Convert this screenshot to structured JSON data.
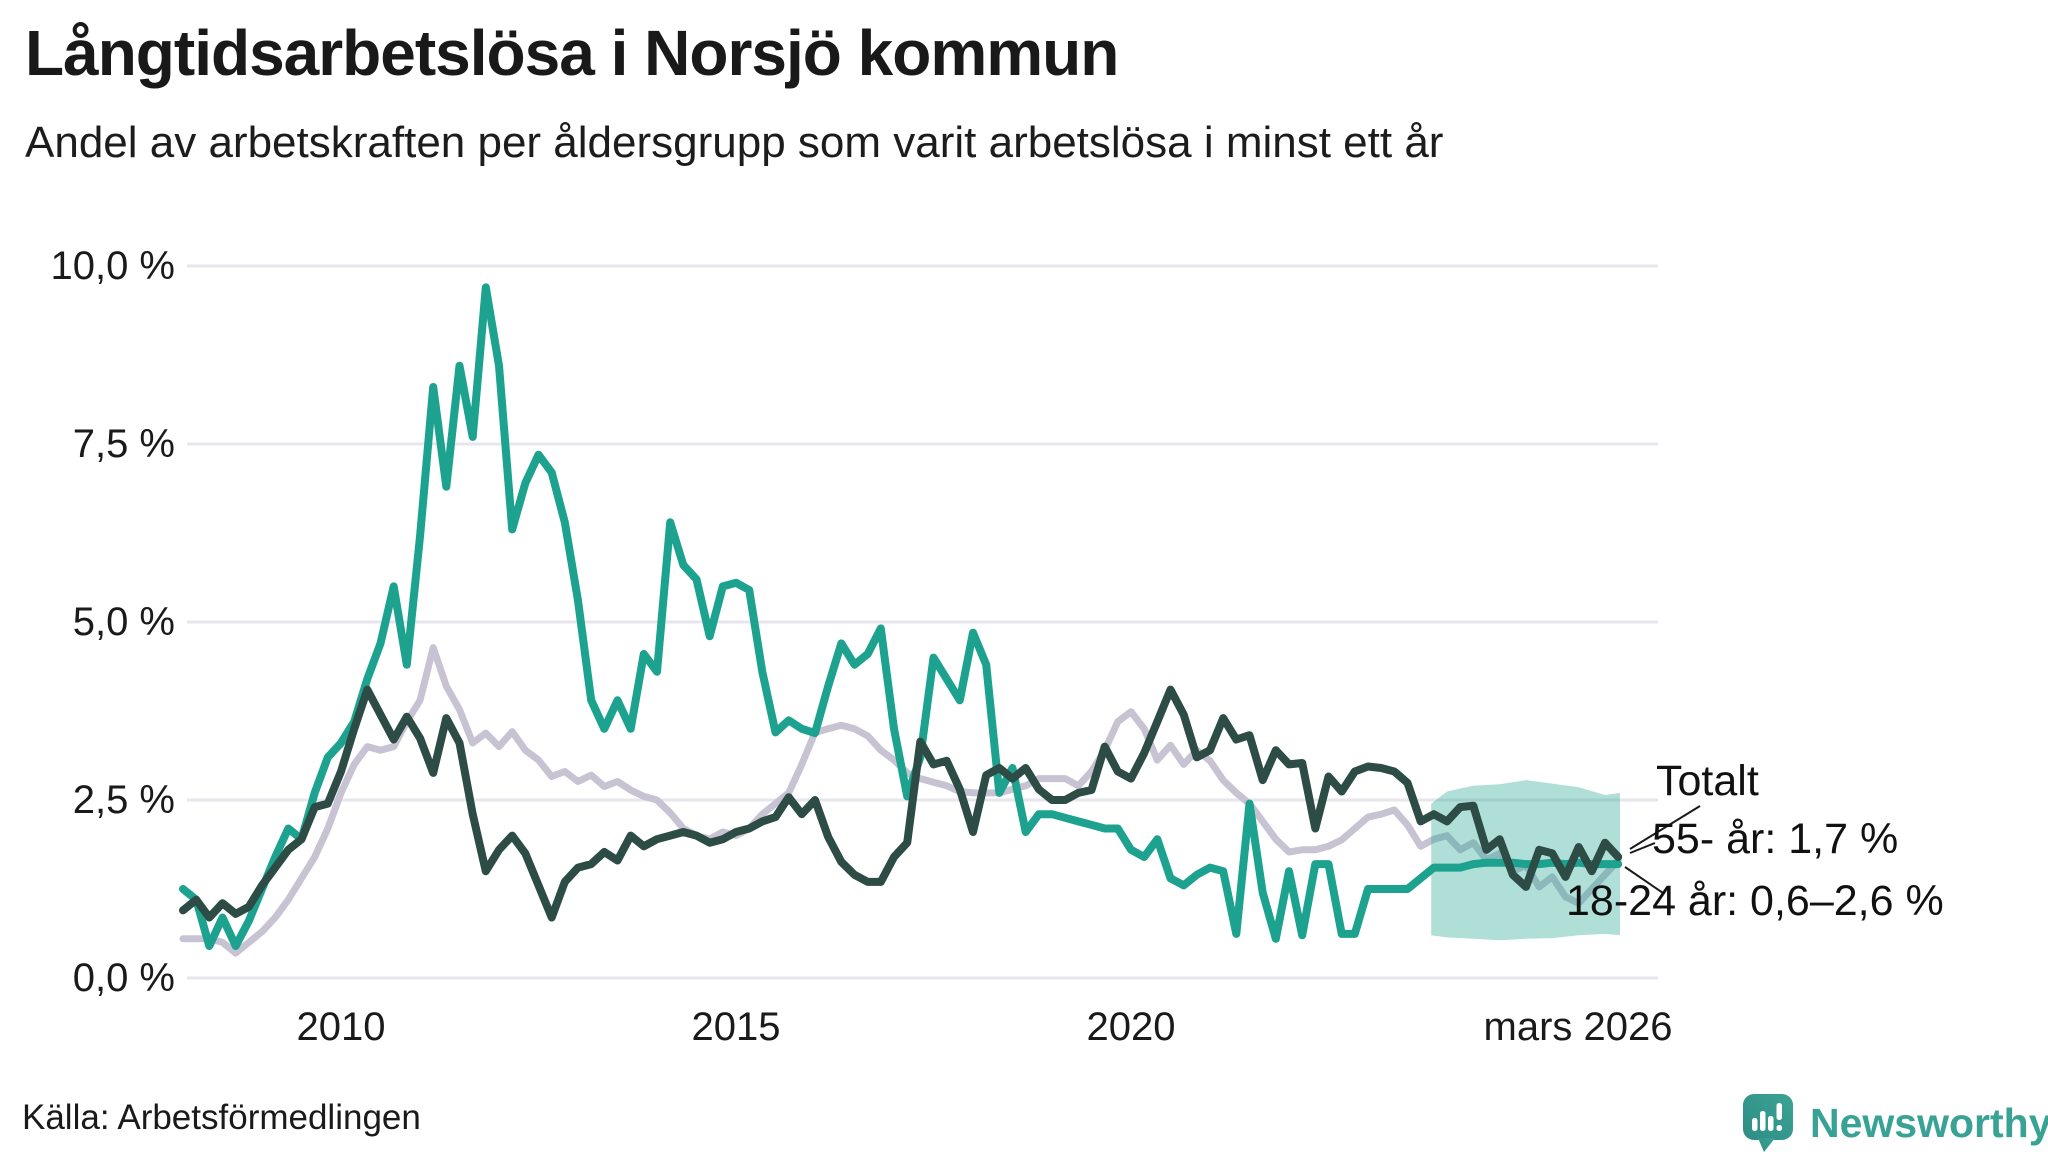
{
  "source": {
    "label": "Källa: Arbetsförmedlingen"
  },
  "branding": {
    "name": "Newsworthy",
    "color": "#38a294"
  },
  "annotations": {
    "totalt": "Totalt",
    "age55": "55- år: 1,7 %",
    "age1824": "18-24 år: 0,6–2,6 %"
  },
  "chart_data": {
    "type": "line",
    "title": "Långtidsarbetslösa i Norsjö kommun",
    "subtitle": "Andel av arbetskraften per åldersgrupp som varit arbetslösa i minst ett år",
    "unit": "%",
    "grid": "horizontal",
    "legend_position": "annotations-right",
    "y_axis": {
      "range": [
        0,
        10
      ],
      "values": [
        10,
        7.5,
        5,
        2.5,
        0
      ],
      "tick_labels": [
        "10,0 %",
        "7,5 %",
        "5,0 %",
        "2,5 %",
        "0,0 %"
      ]
    },
    "x_axis": {
      "range_years": [
        2008.0,
        2026.25
      ],
      "ticks": [
        {
          "label": "2010",
          "t": 2010
        },
        {
          "label": "2015",
          "t": 2015
        },
        {
          "label": "2020",
          "t": 2020
        },
        {
          "label": "mars 2026",
          "t": 2026.19
        }
      ]
    },
    "x_start": 2008.0,
    "x_step": 0.1666667,
    "series": [
      {
        "name": "Totalt",
        "color": "#c7c3d3",
        "width": 7,
        "end_value": 1.65,
        "values": [
          0.55,
          0.55,
          0.55,
          0.5,
          0.35,
          0.5,
          0.65,
          0.85,
          1.1,
          1.4,
          1.7,
          2.1,
          2.6,
          3.0,
          3.25,
          3.2,
          3.25,
          3.6,
          3.9,
          4.64,
          4.1,
          3.77,
          3.3,
          3.44,
          3.25,
          3.46,
          3.2,
          3.06,
          2.83,
          2.9,
          2.76,
          2.85,
          2.69,
          2.76,
          2.64,
          2.55,
          2.5,
          2.32,
          2.1,
          2.0,
          1.95,
          2.05,
          2.0,
          2.1,
          2.3,
          2.45,
          2.6,
          3.0,
          3.45,
          3.5,
          3.55,
          3.5,
          3.4,
          3.2,
          3.06,
          2.88,
          2.8,
          2.75,
          2.7,
          2.62,
          2.6,
          2.6,
          2.6,
          2.65,
          2.7,
          2.8,
          2.8,
          2.8,
          2.7,
          2.9,
          3.2,
          3.6,
          3.74,
          3.5,
          3.06,
          3.27,
          3.0,
          3.2,
          3.05,
          2.78,
          2.6,
          2.45,
          2.2,
          1.95,
          1.77,
          1.8,
          1.8,
          1.85,
          1.94,
          2.1,
          2.26,
          2.3,
          2.36,
          2.15,
          1.85,
          1.95,
          2.0,
          1.8,
          1.9,
          1.66,
          1.75,
          1.5,
          1.58,
          1.28,
          1.42,
          1.14,
          1.05,
          1.25,
          1.45,
          1.65
        ]
      },
      {
        "name": "18-24 år",
        "color": "#1ca28f",
        "width": 8,
        "end_value": 1.6,
        "end_range": [
          0.6,
          2.6
        ],
        "values": [
          1.25,
          1.1,
          0.45,
          0.85,
          0.45,
          0.8,
          1.25,
          1.7,
          2.1,
          1.95,
          2.6,
          3.1,
          3.3,
          3.6,
          4.2,
          4.7,
          5.5,
          4.4,
          6.2,
          8.3,
          6.9,
          8.6,
          7.6,
          9.7,
          8.6,
          6.3,
          6.95,
          7.35,
          7.1,
          6.4,
          5.3,
          3.9,
          3.5,
          3.9,
          3.5,
          4.55,
          4.3,
          6.4,
          5.8,
          5.6,
          4.8,
          5.5,
          5.55,
          5.45,
          4.3,
          3.45,
          3.62,
          3.5,
          3.44,
          4.1,
          4.7,
          4.4,
          4.55,
          4.91,
          3.5,
          2.55,
          3.1,
          4.5,
          4.2,
          3.9,
          4.85,
          4.4,
          2.6,
          2.95,
          2.05,
          2.3,
          2.3,
          2.25,
          2.2,
          2.15,
          2.1,
          2.1,
          1.8,
          1.7,
          1.95,
          1.4,
          1.3,
          1.45,
          1.55,
          1.5,
          0.62,
          2.45,
          1.2,
          0.55,
          1.5,
          0.6,
          1.6,
          1.6,
          0.62,
          0.62,
          1.25,
          1.25,
          1.25,
          1.25,
          1.4,
          1.55,
          1.55,
          1.55,
          1.6,
          1.62,
          1.62,
          1.62,
          1.6,
          1.6,
          1.62,
          1.6,
          1.62,
          1.6,
          1.6,
          1.6
        ]
      },
      {
        "name": "55- år",
        "color": "#2d4c45",
        "width": 8,
        "end_value": 1.7,
        "values": [
          0.95,
          1.1,
          0.85,
          1.05,
          0.9,
          1.0,
          1.3,
          1.55,
          1.8,
          1.95,
          2.4,
          2.45,
          2.9,
          3.5,
          4.05,
          3.7,
          3.35,
          3.67,
          3.37,
          2.88,
          3.65,
          3.3,
          2.3,
          1.5,
          1.8,
          2.0,
          1.75,
          1.3,
          0.85,
          1.35,
          1.55,
          1.6,
          1.77,
          1.65,
          2.0,
          1.85,
          1.95,
          2.0,
          2.05,
          2.0,
          1.9,
          1.95,
          2.05,
          2.1,
          2.2,
          2.26,
          2.54,
          2.3,
          2.5,
          1.98,
          1.63,
          1.45,
          1.35,
          1.35,
          1.7,
          1.9,
          3.32,
          3.0,
          3.05,
          2.65,
          2.05,
          2.85,
          2.95,
          2.8,
          2.95,
          2.65,
          2.5,
          2.5,
          2.6,
          2.64,
          3.25,
          2.9,
          2.8,
          3.16,
          3.6,
          4.05,
          3.7,
          3.1,
          3.2,
          3.65,
          3.35,
          3.41,
          2.78,
          3.2,
          3.0,
          3.02,
          2.1,
          2.83,
          2.62,
          2.9,
          2.97,
          2.95,
          2.9,
          2.74,
          2.2,
          2.3,
          2.2,
          2.4,
          2.42,
          1.8,
          1.95,
          1.45,
          1.28,
          1.8,
          1.75,
          1.42,
          1.84,
          1.5,
          1.9,
          1.7
        ]
      }
    ],
    "band": {
      "series": "18-24 år",
      "label": "0,6–2,6 %",
      "color": "rgba(28,162,143,0.35)",
      "x": [
        2023.8,
        2024.0,
        2024.33,
        2024.67,
        2025.0,
        2025.33,
        2025.67,
        2026.0,
        2026.19
      ],
      "upper": [
        2.45,
        2.62,
        2.7,
        2.72,
        2.78,
        2.73,
        2.68,
        2.57,
        2.6
      ],
      "lower": [
        0.6,
        0.57,
        0.55,
        0.53,
        0.55,
        0.56,
        0.6,
        0.62,
        0.6
      ]
    }
  }
}
